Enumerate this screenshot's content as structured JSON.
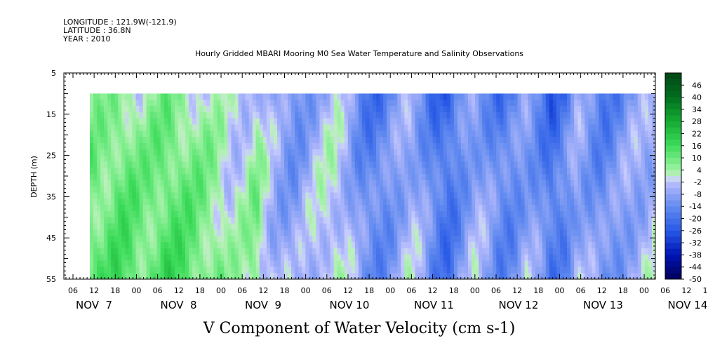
{
  "header": {
    "longitude": "LONGITUDE : 121.9W(-121.9)",
    "latitude": "LATITUDE : 36.8N",
    "year": "YEAR : 2010",
    "title": "Hourly Gridded MBARI Mooring M0 Sea Water Temperature and Salinity Observations"
  },
  "chart_data": {
    "type": "heatmap",
    "title": "Hourly Gridded MBARI Mooring M0 Sea Water Temperature and Salinity Observations",
    "xlabel": "",
    "ylabel": "DEPTH (m)",
    "bottom_label": "V Component of Water Velocity (cm s-1)",
    "y_ticks": [
      5,
      15,
      25,
      35,
      45,
      55
    ],
    "ylim": [
      5,
      55
    ],
    "y_inverted": true,
    "data_depth_range": [
      10,
      55
    ],
    "hour_ticks": [
      "06",
      "12",
      "18",
      "00",
      "06",
      "12",
      "18",
      "00",
      "06",
      "12",
      "18",
      "00",
      "06",
      "12",
      "18",
      "00",
      "06",
      "12",
      "18",
      "00",
      "06",
      "12",
      "18",
      "00",
      "06",
      "12",
      "18",
      "00",
      "06",
      "12",
      "18",
      "00"
    ],
    "day_labels": [
      "NOV  7",
      "NOV  8",
      "NOV  9",
      "NOV 10",
      "NOV 11",
      "NOV 12",
      "NOV 13",
      "NOV 14"
    ],
    "x_start_hour_offset": 9,
    "colorbar": {
      "levels": [
        "46",
        "40",
        "34",
        "28",
        "22",
        "16",
        "10",
        "4",
        "-2",
        "-8",
        "-14",
        "-20",
        "-26",
        "-32",
        "-38",
        "-44",
        "-50"
      ],
      "min": -50,
      "max": 52,
      "step": 3
    },
    "column_mean_values": [
      6,
      5,
      8,
      7,
      4,
      6,
      9,
      7,
      5,
      3,
      1,
      -2,
      -1,
      2,
      -6,
      -10,
      -12,
      -8,
      -4,
      -2,
      -6,
      -14,
      -18,
      -16,
      -10,
      -6,
      -12,
      -20,
      -22,
      -14,
      -8,
      -12,
      -18,
      -16,
      -10,
      -14,
      -22,
      -18,
      -8,
      -12,
      -16,
      -14,
      -10,
      -8,
      -6
    ],
    "depth_profile_values": [
      -2,
      0,
      2,
      3,
      4,
      5,
      5,
      6,
      7,
      8
    ]
  }
}
